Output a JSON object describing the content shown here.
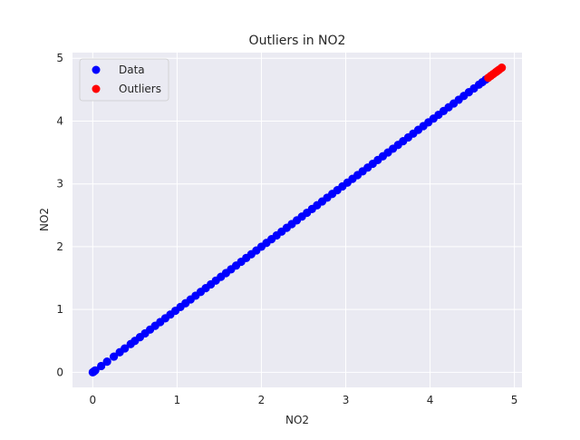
{
  "chart_data": {
    "type": "scatter",
    "title": "Outliers in NO2",
    "xlabel": "NO2",
    "ylabel": "NO2",
    "xlim": [
      -0.24,
      5.09
    ],
    "ylim": [
      -0.24,
      5.09
    ],
    "xticks": [
      0,
      1,
      2,
      3,
      4,
      5
    ],
    "yticks": [
      0,
      1,
      2,
      3,
      4,
      5
    ],
    "grid": true,
    "legend_position": "top-left",
    "colors": {
      "plot_bg": "#eaeaf2",
      "grid": "#ffffff",
      "data": "#0000ff",
      "outliers": "#ff0000"
    },
    "series": [
      {
        "name": "Data",
        "color": "#0000ff",
        "x": [
          0.0,
          0.01,
          0.02,
          0.03,
          0.1,
          0.17,
          0.25,
          0.32,
          0.38,
          0.45,
          0.5,
          0.56,
          0.62,
          0.68,
          0.74,
          0.8,
          0.86,
          0.92,
          0.98,
          1.04,
          1.1,
          1.16,
          1.22,
          1.28,
          1.34,
          1.4,
          1.46,
          1.52,
          1.58,
          1.64,
          1.7,
          1.76,
          1.82,
          1.88,
          1.94,
          2.0,
          2.06,
          2.12,
          2.18,
          2.24,
          2.3,
          2.36,
          2.42,
          2.48,
          2.54,
          2.6,
          2.66,
          2.72,
          2.78,
          2.84,
          2.9,
          2.96,
          3.02,
          3.08,
          3.14,
          3.2,
          3.26,
          3.32,
          3.38,
          3.44,
          3.5,
          3.56,
          3.62,
          3.68,
          3.74,
          3.8,
          3.86,
          3.92,
          3.98,
          4.04,
          4.1,
          4.16,
          4.22,
          4.28,
          4.34,
          4.4,
          4.46,
          4.52,
          4.58,
          4.62,
          4.66
        ],
        "y": [
          0.0,
          0.01,
          0.02,
          0.03,
          0.1,
          0.17,
          0.25,
          0.32,
          0.38,
          0.45,
          0.5,
          0.56,
          0.62,
          0.68,
          0.74,
          0.8,
          0.86,
          0.92,
          0.98,
          1.04,
          1.1,
          1.16,
          1.22,
          1.28,
          1.34,
          1.4,
          1.46,
          1.52,
          1.58,
          1.64,
          1.7,
          1.76,
          1.82,
          1.88,
          1.94,
          2.0,
          2.06,
          2.12,
          2.18,
          2.24,
          2.3,
          2.36,
          2.42,
          2.48,
          2.54,
          2.6,
          2.66,
          2.72,
          2.78,
          2.84,
          2.9,
          2.96,
          3.02,
          3.08,
          3.14,
          3.2,
          3.26,
          3.32,
          3.38,
          3.44,
          3.5,
          3.56,
          3.62,
          3.68,
          3.74,
          3.8,
          3.86,
          3.92,
          3.98,
          4.04,
          4.1,
          4.16,
          4.22,
          4.28,
          4.34,
          4.4,
          4.46,
          4.52,
          4.58,
          4.62,
          4.66
        ]
      },
      {
        "name": "Outliers",
        "color": "#ff0000",
        "x": [
          4.69,
          4.72,
          4.75,
          4.78,
          4.8,
          4.82,
          4.85
        ],
        "y": [
          4.69,
          4.72,
          4.75,
          4.78,
          4.8,
          4.82,
          4.85
        ]
      }
    ]
  }
}
